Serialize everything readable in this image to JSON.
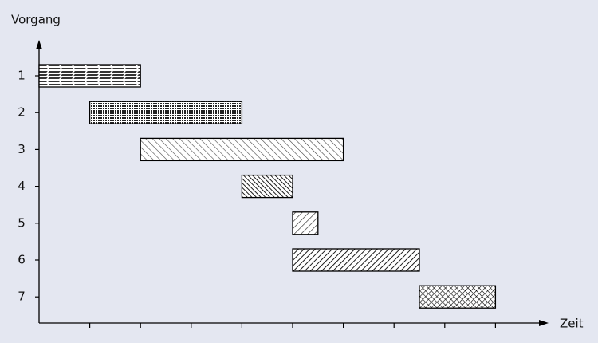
{
  "chart_data": {
    "type": "gantt",
    "y_axis_label": "Vorgang",
    "x_axis_label": "Zeit",
    "categories": [
      "1",
      "2",
      "3",
      "4",
      "5",
      "6",
      "7"
    ],
    "start": [
      0,
      1,
      2,
      4,
      5,
      5,
      7.5
    ],
    "end": [
      2,
      4,
      6,
      5,
      5.5,
      7.5,
      9
    ],
    "patterns": [
      "horizontal",
      "dots",
      "diag-light",
      "diag-dense",
      "slash",
      "slash-dense",
      "cross"
    ],
    "xlim": [
      0,
      10
    ],
    "xticks": [
      1,
      2,
      3,
      4,
      5,
      6,
      7,
      8,
      9
    ]
  }
}
